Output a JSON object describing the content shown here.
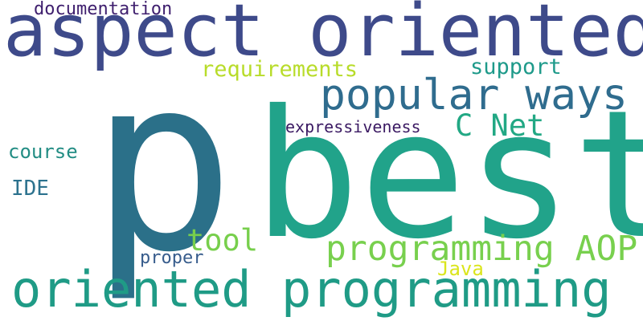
{
  "words": {
    "documentation": "documentation",
    "aspect_oriented": "aspect oriented",
    "p": "p",
    "requirements": "requirements",
    "support": "support",
    "popular_ways": "popular ways",
    "c_net": "C Net",
    "expressiveness": "expressiveness",
    "course": "course",
    "best": "best",
    "ide": "IDE",
    "tool": "tool",
    "programming_aop": "programming AOP",
    "proper": "proper",
    "java": "Java",
    "oriented_programming": "oriented programming"
  },
  "colors": {
    "background": "#ffffff",
    "palette": [
      "#3f1f6e",
      "#3e4a8a",
      "#2b7089",
      "#2f6c8e",
      "#21a38a",
      "#22a884",
      "#1f9b86",
      "#77cf4c",
      "#b8dc2a",
      "#dbe51d"
    ]
  }
}
